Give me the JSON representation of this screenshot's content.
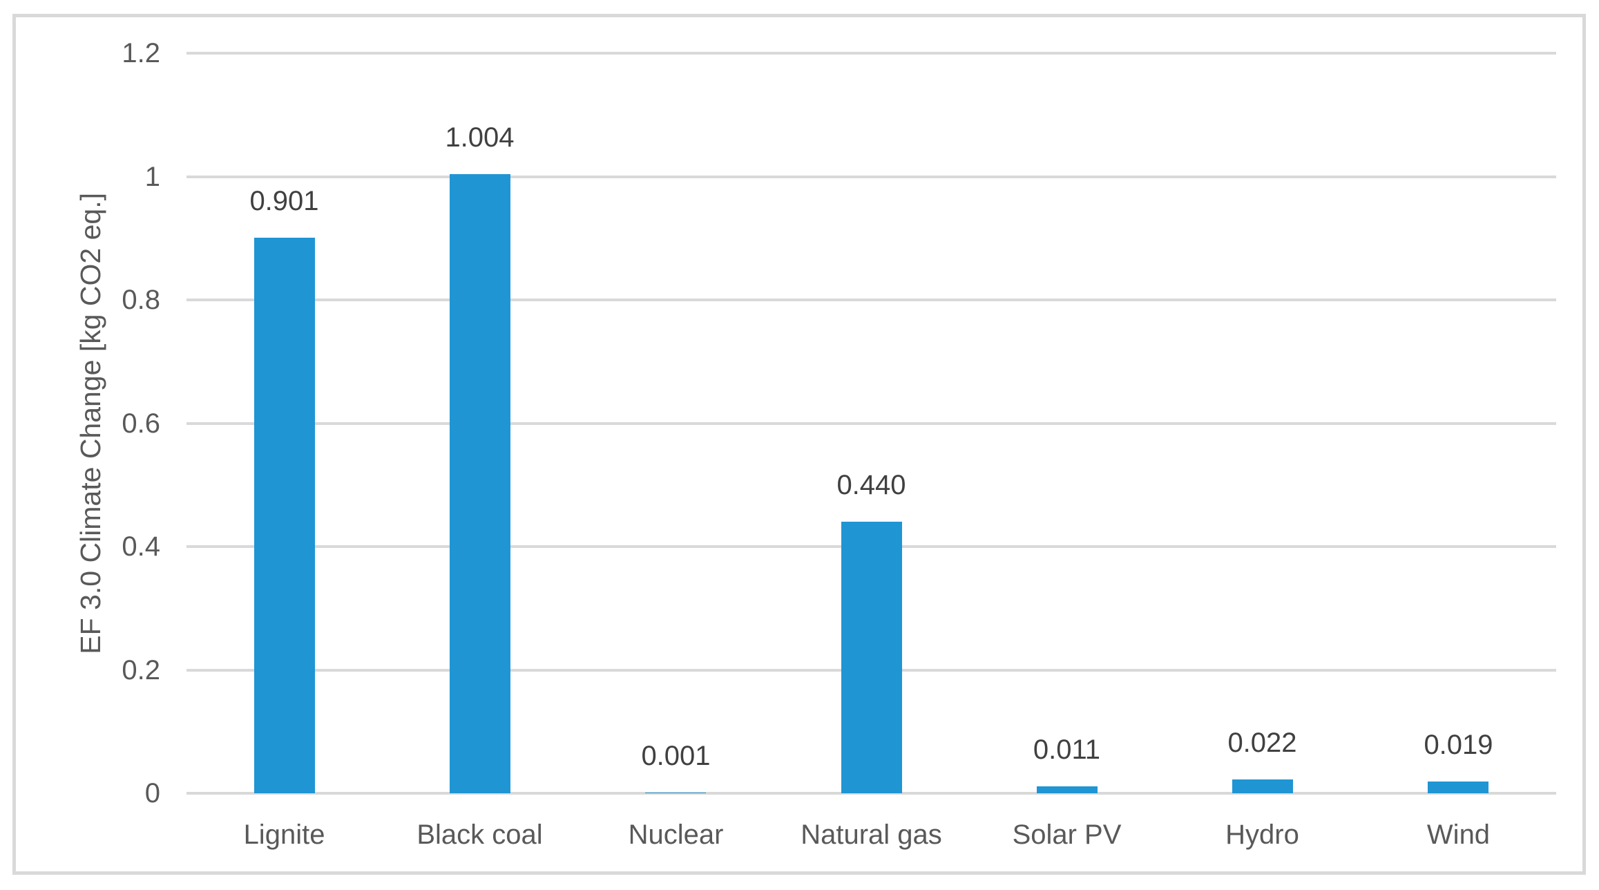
{
  "chart_data": {
    "type": "bar",
    "categories": [
      "Lignite",
      "Black coal",
      "Nuclear",
      "Natural gas",
      "Solar PV",
      "Hydro",
      "Wind"
    ],
    "values": [
      0.901,
      1.004,
      0.001,
      0.44,
      0.011,
      0.022,
      0.019
    ],
    "value_labels": [
      "0.901",
      "1.004",
      "0.001",
      "0.440",
      "0.011",
      "0.022",
      "0.019"
    ],
    "title": "",
    "xlabel": "",
    "ylabel": "EF 3.0 Climate Change [kg CO2 eq.]",
    "ylim": [
      0,
      1.2
    ],
    "ytick_values": [
      0,
      0.2,
      0.4,
      0.6,
      0.8,
      1.0,
      1.2
    ],
    "ytick_labels": [
      "0",
      "0.2",
      "0.4",
      "0.6",
      "0.8",
      "1",
      "1.2"
    ],
    "grid": true,
    "legend": false,
    "colors": {
      "bar": "#2095d3",
      "gridline": "#d9d9d9",
      "axis_text": "#595959",
      "data_label": "#404040",
      "frame_border": "#d9d9d9",
      "background": "#ffffff"
    }
  }
}
